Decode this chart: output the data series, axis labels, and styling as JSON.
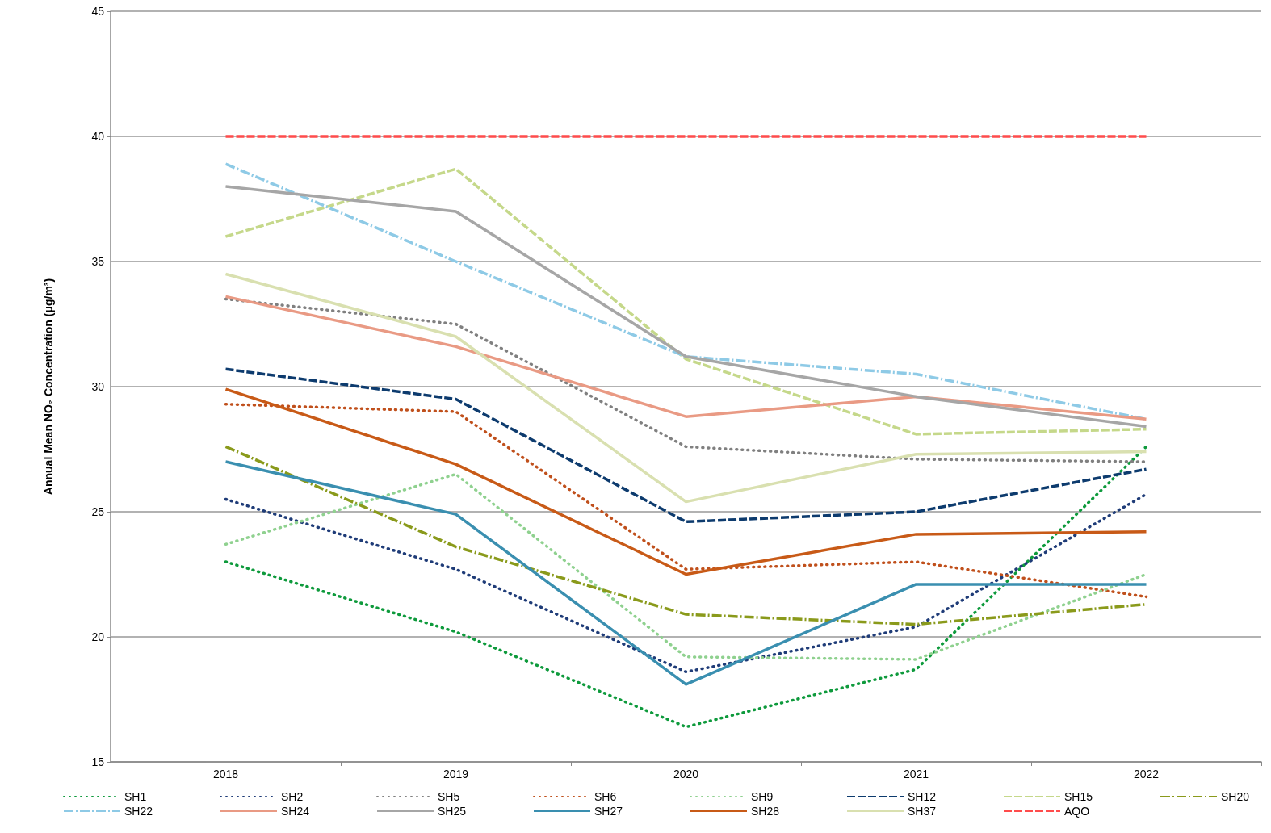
{
  "chart_data": {
    "type": "line",
    "ylabel": "Annual Mean NO₂ Concentration (μg/m³)",
    "categories": [
      "2018",
      "2019",
      "2020",
      "2021",
      "2022"
    ],
    "ylim": [
      15,
      45
    ],
    "yticks": [
      15,
      20,
      25,
      30,
      35,
      40,
      45
    ],
    "grid": "y",
    "legend": "bottom",
    "marker": "none",
    "series": [
      {
        "name": "SH1",
        "color": "#0e9a3c",
        "line_style": "dotted",
        "values": [
          23.0,
          20.2,
          16.4,
          18.7,
          27.6
        ]
      },
      {
        "name": "SH2",
        "color": "#1f3c78",
        "line_style": "dotted",
        "values": [
          25.5,
          22.7,
          18.6,
          20.4,
          25.7
        ]
      },
      {
        "name": "SH5",
        "color": "#808080",
        "line_style": "dotted",
        "values": [
          33.5,
          32.5,
          27.6,
          27.1,
          27.0
        ]
      },
      {
        "name": "SH6",
        "color": "#c0501c",
        "line_style": "dotted",
        "values": [
          29.3,
          29.0,
          22.7,
          23.0,
          21.6
        ]
      },
      {
        "name": "SH9",
        "color": "#8fd18f",
        "line_style": "dotted",
        "values": [
          23.7,
          26.5,
          19.2,
          19.1,
          22.5
        ]
      },
      {
        "name": "SH12",
        "color": "#0d3b6e",
        "line_style": "dashed",
        "values": [
          30.7,
          29.5,
          24.6,
          25.0,
          26.7
        ]
      },
      {
        "name": "SH15",
        "color": "#c5d88a",
        "line_style": "dashed",
        "values": [
          36.0,
          38.7,
          31.1,
          28.1,
          28.3
        ]
      },
      {
        "name": "SH20",
        "color": "#8a9a1b",
        "line_style": "dashdot",
        "values": [
          27.6,
          23.6,
          20.9,
          20.5,
          21.3
        ]
      },
      {
        "name": "SH22",
        "color": "#8ecae6",
        "line_style": "dashdot",
        "values": [
          38.9,
          35.0,
          31.2,
          30.5,
          28.7
        ]
      },
      {
        "name": "SH24",
        "color": "#e99a84",
        "line_style": "solid",
        "values": [
          33.6,
          31.6,
          28.8,
          29.6,
          28.7
        ]
      },
      {
        "name": "SH25",
        "color": "#a6a6a6",
        "line_style": "solid",
        "values": [
          38.0,
          37.0,
          31.2,
          29.6,
          28.4
        ]
      },
      {
        "name": "SH27",
        "color": "#3a8fb0",
        "line_style": "solid",
        "values": [
          27.0,
          24.9,
          18.1,
          22.1,
          22.1
        ]
      },
      {
        "name": "SH28",
        "color": "#c85a17",
        "line_style": "solid",
        "values": [
          29.9,
          26.9,
          22.5,
          24.1,
          24.2
        ]
      },
      {
        "name": "SH37",
        "color": "#d9e0b0",
        "line_style": "solid",
        "values": [
          34.5,
          32.0,
          25.4,
          27.3,
          27.4
        ]
      },
      {
        "name": "AQO",
        "color": "#ff4c4c",
        "line_style": "dashed",
        "values": [
          40,
          40,
          40,
          40,
          40
        ]
      }
    ]
  }
}
